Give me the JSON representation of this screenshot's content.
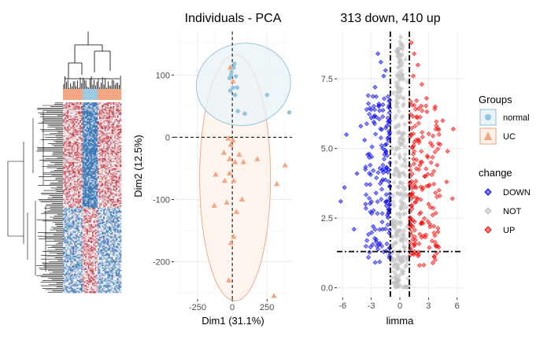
{
  "colors": {
    "heat_red": "#c0303c",
    "heat_blue": "#3c78b4",
    "annot_normal": "#9ecae1",
    "annot_uc": "#f4a582",
    "normal_point": "#92c5de",
    "uc_point": "#f4a582",
    "ellipse_normal_fill": "#e9f3f8",
    "ellipse_normal_stroke": "#8fc1d8",
    "ellipse_uc_fill": "#fdf1ea",
    "ellipse_uc_stroke": "#f0a27e",
    "down": "#0000ff",
    "not": "#bfbfbf",
    "up": "#ff0000"
  },
  "chart_data": [
    {
      "type": "heatmap",
      "title": "",
      "annotation_groups": [
        "normal",
        "UC"
      ],
      "n_rows": 150,
      "n_cols": 42,
      "palette": [
        "blue",
        "white",
        "red"
      ]
    },
    {
      "type": "scatter",
      "title": "Individuals - PCA",
      "xlabel": "Dim1 (31.1%)",
      "ylabel": "Dim2 (12.5%)",
      "xlim": [
        -420,
        430
      ],
      "ylim": [
        -260,
        170
      ],
      "xticks": [
        -250,
        0,
        250
      ],
      "yticks": [
        100,
        0,
        -100,
        -200
      ],
      "xtick_labels": [
        "-250",
        "0",
        "250"
      ],
      "ytick_labels": [
        "100",
        "0",
        "-100",
        "-200"
      ],
      "reference_lines": {
        "x": 0,
        "y": 0
      },
      "series": [
        {
          "name": "normal",
          "marker": "circle",
          "points": [
            [
              -5,
              105
            ],
            [
              15,
              118
            ],
            [
              10,
              112
            ],
            [
              -10,
              100
            ],
            [
              25,
              98
            ],
            [
              5,
              80
            ],
            [
              35,
              80
            ],
            [
              -15,
              75
            ],
            [
              20,
              68
            ],
            [
              90,
              38
            ],
            [
              40,
              42
            ],
            [
              250,
              68
            ],
            [
              410,
              40
            ],
            [
              -20,
              95
            ]
          ],
          "ellipse": {
            "cx": 80,
            "cy": 85,
            "rx": 340,
            "ry": 66,
            "angle_deg": -8
          }
        },
        {
          "name": "UC",
          "marker": "triangle",
          "points": [
            [
              -15,
              112
            ],
            [
              5,
              90
            ],
            [
              -30,
              -2
            ],
            [
              -10,
              -12
            ],
            [
              5,
              -5
            ],
            [
              -60,
              -25
            ],
            [
              -20,
              -35
            ],
            [
              20,
              -40
            ],
            [
              50,
              -28
            ],
            [
              80,
              -40
            ],
            [
              -120,
              -60
            ],
            [
              -55,
              -70
            ],
            [
              -20,
              -58
            ],
            [
              10,
              -70
            ],
            [
              180,
              -35
            ],
            [
              320,
              -75
            ],
            [
              380,
              -45
            ],
            [
              -130,
              -110
            ],
            [
              -40,
              -105
            ],
            [
              30,
              -120
            ],
            [
              70,
              -100
            ],
            [
              -10,
              -170
            ],
            [
              10,
              -160
            ],
            [
              300,
              -255
            ],
            [
              -25,
              -230
            ]
          ],
          "ellipse": {
            "cx": 20,
            "cy": -65,
            "rx": 255,
            "ry": 198,
            "angle_deg": 0
          }
        }
      ]
    },
    {
      "type": "scatter",
      "title": "313 down, 410 up",
      "xlabel": "limma",
      "ylabel": "",
      "xlim": [
        -6.6,
        6.6
      ],
      "ylim": [
        -0.35,
        9.2
      ],
      "xticks": [
        -6,
        -3,
        0,
        3,
        6
      ],
      "yticks": [
        0.0,
        2.5,
        5.0,
        7.5
      ],
      "xtick_labels": [
        "-6",
        "-3",
        "0",
        "3",
        "6"
      ],
      "ytick_labels": [
        "0.0",
        "2.5",
        "5.0",
        "7.5"
      ],
      "thresholds": {
        "logfc": [
          -1,
          1
        ],
        "neg_log10_p": 1.3
      },
      "counts": {
        "down": 313,
        "up": 410
      },
      "series": [
        {
          "name": "DOWN",
          "points": [
            [
              -2.3,
              8.4
            ],
            [
              -2.0,
              8.1
            ],
            [
              -1.7,
              7.6
            ],
            [
              -2.6,
              7.2
            ],
            [
              -1.5,
              7.8
            ],
            [
              -3.0,
              6.1
            ],
            [
              -3.7,
              5.3
            ],
            [
              -4.1,
              5.8
            ],
            [
              -2.2,
              6.6
            ],
            [
              -5.6,
              5.5
            ],
            [
              -5.8,
              3.6
            ],
            [
              -6.2,
              3.1
            ],
            [
              -4.5,
              4.1
            ],
            [
              -3.2,
              4.8
            ],
            [
              -1.8,
              5.0
            ],
            [
              -2.5,
              3.4
            ],
            [
              -4.8,
              2.1
            ],
            [
              -1.3,
              2.6
            ],
            [
              -2.1,
              1.6
            ],
            [
              -1.4,
              4.3
            ],
            [
              -2.8,
              2.2
            ],
            [
              -3.6,
              3.0
            ]
          ]
        },
        {
          "name": "NOT",
          "points": [
            [
              0.1,
              9.0
            ],
            [
              0.3,
              8.7
            ],
            [
              -0.4,
              8.5
            ],
            [
              0.6,
              8.2
            ],
            [
              -0.2,
              7.9
            ],
            [
              0.8,
              7.4
            ],
            [
              -0.7,
              7.0
            ],
            [
              0.4,
              6.6
            ],
            [
              -0.5,
              6.1
            ],
            [
              0.2,
              5.5
            ],
            [
              -0.8,
              5.0
            ],
            [
              0.5,
              4.6
            ],
            [
              0.0,
              4.0
            ],
            [
              -0.3,
              3.4
            ],
            [
              0.7,
              2.9
            ],
            [
              -0.6,
              2.3
            ],
            [
              0.2,
              1.7
            ],
            [
              -0.1,
              1.1
            ],
            [
              0.4,
              0.6
            ],
            [
              -0.3,
              0.3
            ],
            [
              0.0,
              0.1
            ]
          ]
        },
        {
          "name": "UP",
          "points": [
            [
              1.2,
              8.8
            ],
            [
              1.5,
              8.4
            ],
            [
              1.9,
              8.0
            ],
            [
              1.4,
              7.6
            ],
            [
              2.3,
              7.3
            ],
            [
              2.8,
              6.8
            ],
            [
              3.7,
              6.5
            ],
            [
              4.5,
              6.0
            ],
            [
              5.6,
              5.7
            ],
            [
              5.0,
              4.9
            ],
            [
              3.4,
              5.1
            ],
            [
              2.1,
              4.4
            ],
            [
              4.9,
              3.8
            ],
            [
              5.5,
              3.2
            ],
            [
              3.0,
              3.0
            ],
            [
              2.2,
              2.3
            ],
            [
              4.0,
              2.0
            ],
            [
              1.5,
              1.5
            ],
            [
              1.1,
              1.6
            ],
            [
              2.6,
              4.0
            ],
            [
              3.9,
              4.4
            ],
            [
              1.7,
              5.3
            ]
          ]
        }
      ]
    }
  ],
  "legends": {
    "groups": {
      "title": "Groups",
      "items": [
        "normal",
        "UC"
      ]
    },
    "change": {
      "title": "change",
      "items": [
        "DOWN",
        "NOT",
        "UP"
      ]
    }
  }
}
